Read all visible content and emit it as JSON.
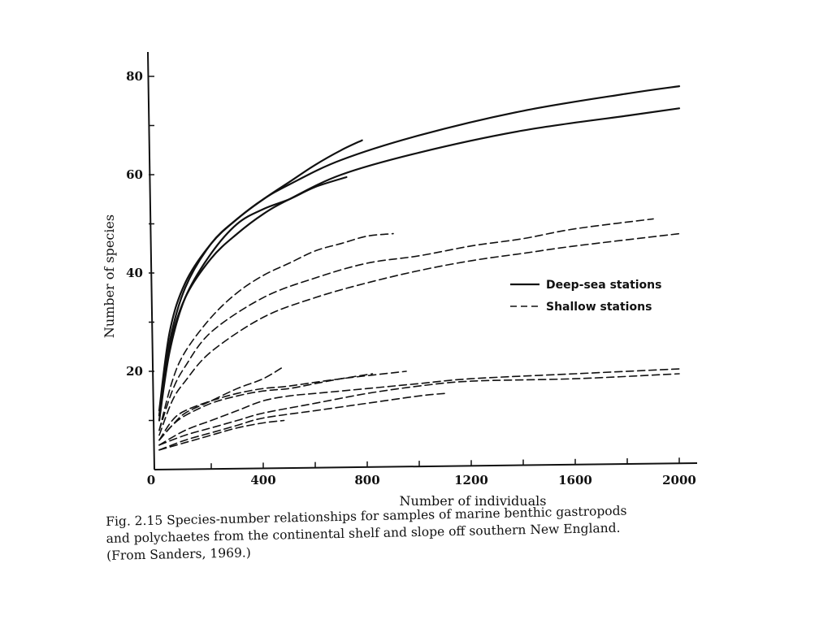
{
  "chart_data": {
    "type": "line",
    "xlabel": "Number of individuals",
    "ylabel": "Number of species",
    "xlim": [
      0,
      2000
    ],
    "ylim": [
      0,
      85
    ],
    "x_ticks": [
      0,
      400,
      800,
      1200,
      1600,
      2000
    ],
    "x_tick_labels": [
      "0",
      "400",
      "800",
      "1200",
      "1600",
      "2000"
    ],
    "y_ticks": [
      20,
      40,
      60,
      80
    ],
    "y_tick_labels": [
      "20",
      "40",
      "60",
      "80"
    ],
    "grid": false,
    "legend": {
      "position": "right",
      "entries": [
        {
          "label": "Deep-sea stations",
          "style": "solid"
        },
        {
          "label": "Shallow stations",
          "style": "dashed"
        }
      ]
    },
    "series": [
      {
        "group": "Deep-sea stations",
        "style": "solid",
        "points": [
          [
            0,
            12
          ],
          [
            40,
            28
          ],
          [
            100,
            38
          ],
          [
            200,
            46
          ],
          [
            300,
            51
          ],
          [
            400,
            55
          ],
          [
            500,
            58
          ],
          [
            700,
            63
          ],
          [
            1000,
            68
          ],
          [
            1400,
            73
          ],
          [
            1800,
            76.5
          ],
          [
            2000,
            78
          ]
        ]
      },
      {
        "group": "Deep-sea stations",
        "style": "solid",
        "points": [
          [
            0,
            11
          ],
          [
            40,
            25
          ],
          [
            100,
            35
          ],
          [
            200,
            43
          ],
          [
            300,
            48
          ],
          [
            400,
            52
          ],
          [
            500,
            55
          ],
          [
            700,
            60
          ],
          [
            1000,
            64.5
          ],
          [
            1400,
            69
          ],
          [
            1800,
            72
          ],
          [
            2000,
            73.5
          ]
        ]
      },
      {
        "group": "Deep-sea stations",
        "style": "solid",
        "points": [
          [
            0,
            11
          ],
          [
            40,
            26
          ],
          [
            100,
            37
          ],
          [
            200,
            46
          ],
          [
            300,
            51
          ],
          [
            400,
            55
          ],
          [
            500,
            58.5
          ],
          [
            600,
            62
          ],
          [
            700,
            65
          ],
          [
            780,
            67
          ]
        ]
      },
      {
        "group": "Deep-sea stations",
        "style": "solid",
        "points": [
          [
            0,
            10
          ],
          [
            40,
            24
          ],
          [
            100,
            35
          ],
          [
            200,
            44
          ],
          [
            300,
            50
          ],
          [
            400,
            53
          ],
          [
            500,
            55
          ],
          [
            600,
            57.5
          ],
          [
            720,
            59.5
          ]
        ]
      },
      {
        "group": "Shallow stations",
        "style": "dashed",
        "points": [
          [
            0,
            8
          ],
          [
            50,
            18
          ],
          [
            100,
            24
          ],
          [
            200,
            31
          ],
          [
            300,
            36
          ],
          [
            400,
            39.5
          ],
          [
            500,
            42
          ],
          [
            600,
            44.5
          ],
          [
            700,
            46
          ],
          [
            800,
            47.5
          ],
          [
            900,
            48
          ]
        ]
      },
      {
        "group": "Shallow stations",
        "style": "dashed",
        "points": [
          [
            0,
            8
          ],
          [
            50,
            16
          ],
          [
            100,
            21
          ],
          [
            200,
            28
          ],
          [
            400,
            35
          ],
          [
            600,
            39
          ],
          [
            800,
            42
          ],
          [
            1000,
            43.5
          ],
          [
            1200,
            45.5
          ],
          [
            1400,
            47
          ],
          [
            1600,
            49
          ],
          [
            1900,
            51
          ]
        ]
      },
      {
        "group": "Shallow stations",
        "style": "dashed",
        "points": [
          [
            0,
            7
          ],
          [
            50,
            14
          ],
          [
            100,
            18
          ],
          [
            200,
            24
          ],
          [
            400,
            31
          ],
          [
            600,
            35
          ],
          [
            800,
            38
          ],
          [
            1000,
            40.5
          ],
          [
            1200,
            42.5
          ],
          [
            1400,
            44
          ],
          [
            1600,
            45.5
          ],
          [
            2000,
            48
          ]
        ]
      },
      {
        "group": "Shallow stations",
        "style": "dashed",
        "points": [
          [
            0,
            6
          ],
          [
            50,
            9
          ],
          [
            100,
            11.5
          ],
          [
            200,
            14
          ],
          [
            300,
            16.5
          ],
          [
            400,
            18.5
          ],
          [
            480,
            21
          ]
        ]
      },
      {
        "group": "Shallow stations",
        "style": "dashed",
        "points": [
          [
            0,
            6
          ],
          [
            50,
            9
          ],
          [
            100,
            11
          ],
          [
            200,
            13.5
          ],
          [
            300,
            15
          ],
          [
            400,
            16
          ],
          [
            500,
            16.5
          ],
          [
            600,
            17.5
          ],
          [
            700,
            18.5
          ],
          [
            820,
            19.5
          ]
        ]
      },
      {
        "group": "Shallow stations",
        "style": "dashed",
        "points": [
          [
            0,
            6
          ],
          [
            50,
            10
          ],
          [
            100,
            12
          ],
          [
            200,
            14
          ],
          [
            300,
            15.5
          ],
          [
            400,
            16.5
          ],
          [
            500,
            17
          ],
          [
            700,
            18.5
          ],
          [
            950,
            20
          ]
        ]
      },
      {
        "group": "Shallow stations",
        "style": "dashed",
        "points": [
          [
            0,
            5
          ],
          [
            100,
            8
          ],
          [
            200,
            10
          ],
          [
            300,
            12
          ],
          [
            400,
            14
          ],
          [
            500,
            15
          ],
          [
            600,
            15.5
          ],
          [
            800,
            16.5
          ],
          [
            1000,
            17.5
          ],
          [
            1200,
            18.5
          ],
          [
            1600,
            19.5
          ],
          [
            2000,
            20.5
          ]
        ]
      },
      {
        "group": "Shallow stations",
        "style": "dashed",
        "points": [
          [
            0,
            5
          ],
          [
            100,
            7
          ],
          [
            200,
            8.5
          ],
          [
            300,
            10
          ],
          [
            400,
            11.5
          ],
          [
            600,
            13.5
          ],
          [
            800,
            15.5
          ],
          [
            1000,
            17
          ],
          [
            1200,
            18
          ],
          [
            1600,
            18.5
          ],
          [
            2000,
            19.5
          ]
        ]
      },
      {
        "group": "Shallow stations",
        "style": "dashed",
        "points": [
          [
            0,
            4
          ],
          [
            100,
            6
          ],
          [
            200,
            7.5
          ],
          [
            300,
            9
          ],
          [
            400,
            10.5
          ],
          [
            600,
            12
          ],
          [
            800,
            13.5
          ],
          [
            1000,
            15
          ],
          [
            1100,
            15.5
          ]
        ]
      },
      {
        "group": "Shallow stations",
        "style": "dashed",
        "points": [
          [
            0,
            4
          ],
          [
            100,
            5.5
          ],
          [
            200,
            7
          ],
          [
            300,
            8.5
          ],
          [
            400,
            9.5
          ],
          [
            480,
            10
          ]
        ]
      }
    ]
  },
  "caption": {
    "line1": "Fig. 2.15  Species-number relationships for samples of marine benthic gastropods",
    "line2": "and polychaetes from the continental shelf and slope off southern New England.",
    "line3": "(From Sanders, 1969.)"
  }
}
